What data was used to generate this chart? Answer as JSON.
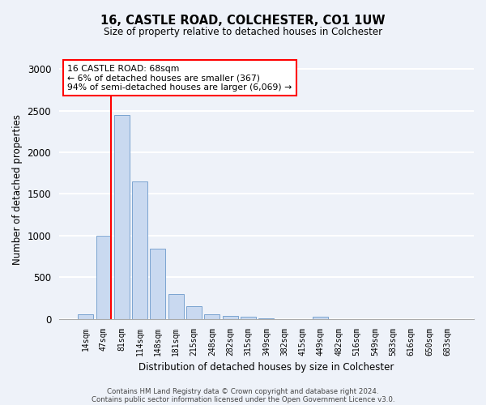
{
  "title1": "16, CASTLE ROAD, COLCHESTER, CO1 1UW",
  "title2": "Size of property relative to detached houses in Colchester",
  "xlabel": "Distribution of detached houses by size in Colchester",
  "ylabel": "Number of detached properties",
  "categories": [
    "14sqm",
    "47sqm",
    "81sqm",
    "114sqm",
    "148sqm",
    "181sqm",
    "215sqm",
    "248sqm",
    "282sqm",
    "315sqm",
    "349sqm",
    "382sqm",
    "415sqm",
    "449sqm",
    "482sqm",
    "516sqm",
    "549sqm",
    "583sqm",
    "616sqm",
    "650sqm",
    "683sqm"
  ],
  "values": [
    55,
    1000,
    2450,
    1650,
    840,
    295,
    150,
    55,
    35,
    25,
    5,
    0,
    0,
    25,
    0,
    0,
    0,
    0,
    0,
    0,
    0
  ],
  "bar_color": "#c9d9f0",
  "bar_edge_color": "#7ba3d0",
  "vline_x_index": 1,
  "vline_color": "red",
  "annotation_text": "16 CASTLE ROAD: 68sqm\n← 6% of detached houses are smaller (367)\n94% of semi-detached houses are larger (6,069) →",
  "annotation_box_color": "white",
  "annotation_box_edge": "red",
  "ylim": [
    0,
    3100
  ],
  "yticks": [
    0,
    500,
    1000,
    1500,
    2000,
    2500,
    3000
  ],
  "footer1": "Contains HM Land Registry data © Crown copyright and database right 2024.",
  "footer2": "Contains public sector information licensed under the Open Government Licence v3.0.",
  "background_color": "#eef2f9",
  "grid_color": "white"
}
